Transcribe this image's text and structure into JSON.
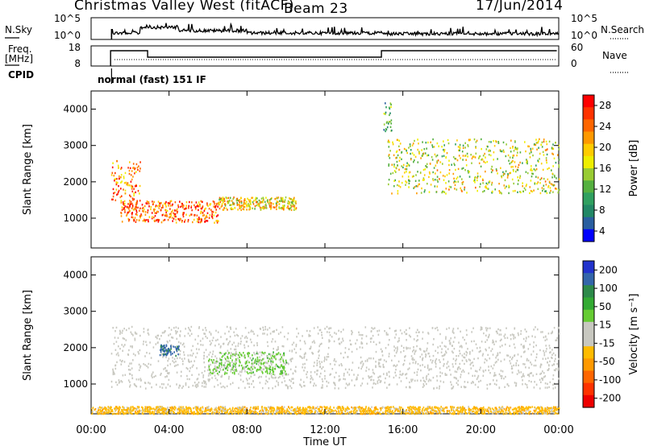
{
  "header": {
    "radar": "Christmas Valley West (fitACF)",
    "beam": "Beam 23",
    "date": "17/Jun/2014"
  },
  "noise_panel": {
    "left_label": "N.Sky",
    "left_ticks": [
      "10^5",
      "10^0"
    ],
    "right_ticks": [
      "10^5",
      "10^0"
    ],
    "right_label": "N.Search"
  },
  "freq_panel": {
    "left_label_1": "Freq.",
    "left_label_2": "[MHz]",
    "left_ticks": [
      "18",
      "8"
    ],
    "right_ticks": [
      "60",
      "0"
    ],
    "right_label": "Nave"
  },
  "cpid": {
    "label": "CPID",
    "mode": "normal (fast) 151 IF"
  },
  "power_panel": {
    "ylabel": "Slant Range [km]",
    "yticks": [
      "4000",
      "3000",
      "2000",
      "1000"
    ],
    "colorbar_label": "Power [dB]",
    "colorbar_ticks": [
      "28",
      "24",
      "20",
      "16",
      "12",
      "8",
      "4"
    ],
    "colorbar_colors": [
      "#ff0000",
      "#ff3300",
      "#ff6600",
      "#ff9900",
      "#ffcc00",
      "#eeee00",
      "#99cc33",
      "#55b040",
      "#30a060",
      "#228866",
      "#2a5fa0",
      "#0000ff"
    ]
  },
  "velocity_panel": {
    "ylabel": "Slant Range [km]",
    "yticks": [
      "4000",
      "3000",
      "2000",
      "1000"
    ],
    "colorbar_label": "Velocity [m s⁻¹]",
    "colorbar_ticks": [
      "200",
      "100",
      "50",
      "15",
      "-15",
      "-50",
      "-100",
      "-200"
    ],
    "colorbar_colors": [
      "#2233cc",
      "#3366aa",
      "#2d8a4a",
      "#33aa33",
      "#66cc33",
      "#c8c8c0",
      "#c8c8c0",
      "#ffbb00",
      "#ff9900",
      "#ff6600",
      "#ff3300",
      "#ee0000"
    ]
  },
  "xaxis": {
    "ticks": [
      "00:00",
      "04:00",
      "08:00",
      "12:00",
      "16:00",
      "20:00",
      "00:00"
    ],
    "label": "Time UT"
  },
  "chart_data": {
    "type": "heatmap",
    "x_range_hours": [
      0,
      24
    ],
    "y_range_km": [
      180,
      4500
    ],
    "power_range_db": [
      0,
      30
    ],
    "velocity_range_ms": [
      -250,
      250
    ],
    "power_features": [
      {
        "t": [
          1.0,
          2.5
        ],
        "range": [
          1500,
          2600
        ],
        "power": 22
      },
      {
        "t": [
          1.5,
          6.5
        ],
        "range": [
          900,
          1500
        ],
        "power": 24
      },
      {
        "t": [
          6.5,
          10.5
        ],
        "range": [
          1250,
          1600
        ],
        "power": 18
      },
      {
        "t": [
          15.2,
          24.0
        ],
        "range": [
          1700,
          3200
        ],
        "power": 16
      },
      {
        "t": [
          15.0,
          15.4
        ],
        "range": [
          3400,
          4200
        ],
        "power": 10
      }
    ],
    "velocity_features": [
      {
        "t": [
          1.0,
          24.0
        ],
        "range": [
          900,
          2600
        ],
        "velocity": 0
      },
      {
        "t": [
          6.0,
          10.0
        ],
        "range": [
          1300,
          1900
        ],
        "velocity": 60
      },
      {
        "t": [
          3.5,
          4.5
        ],
        "range": [
          1800,
          2100
        ],
        "velocity": 180
      },
      {
        "t": [
          0.0,
          24.0
        ],
        "range": [
          200,
          400
        ],
        "velocity": -60
      }
    ]
  }
}
